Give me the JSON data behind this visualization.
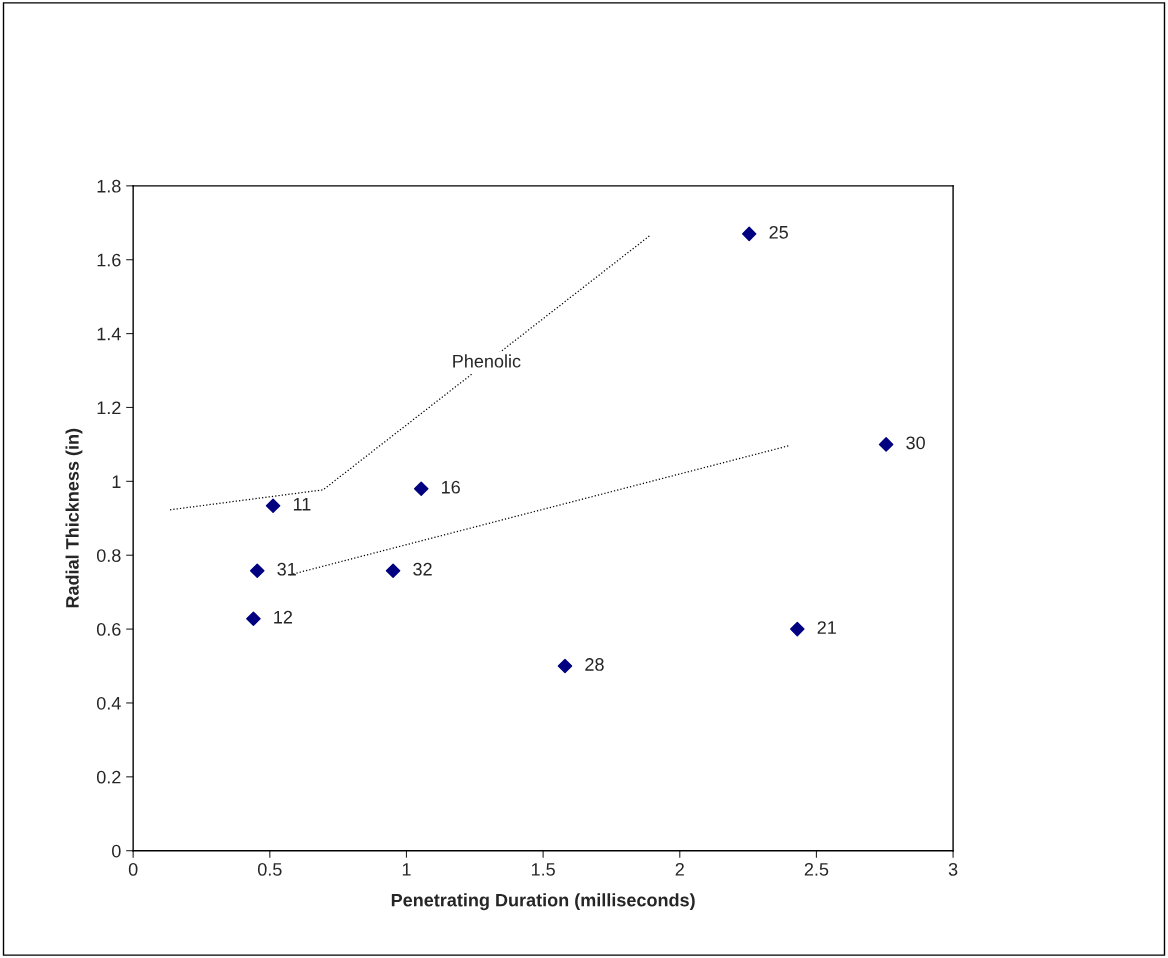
{
  "chart_data": {
    "type": "scatter",
    "xlabel": "Penetrating Duration (milliseconds)",
    "ylabel": "Radial Thickness (in)",
    "xlim": [
      0,
      3
    ],
    "xticks": [
      0,
      0.5,
      1,
      1.5,
      2,
      2.5,
      3
    ],
    "ylim": [
      0,
      1.8
    ],
    "yticks": [
      0,
      0.2,
      0.4,
      0.6,
      0.8,
      1,
      1.2,
      1.4,
      1.6,
      1.8
    ],
    "grid": false,
    "legend": false,
    "marker": "diamond",
    "series": [
      {
        "color": "#000080",
        "x": [
          0.512,
          0.44,
          0.454,
          0.951,
          1.054,
          1.58,
          2.254,
          2.43,
          2.755
        ],
        "values": [
          0.934,
          0.628,
          0.758,
          0.758,
          0.98,
          0.5,
          1.67,
          0.6,
          1.1
        ]
      },
      {
        "type": "line",
        "name": "Phenolic",
        "color": "#000000",
        "line_style": "dotted",
        "marker": "none",
        "x": [
          0.135,
          0.695,
          1.89
        ],
        "values": [
          0.923,
          0.977,
          1.665
        ]
      },
      {
        "type": "line",
        "color": "#000000",
        "line_style": "dotted",
        "marker": "none",
        "x": [
          0.574,
          2.397
        ],
        "values": [
          0.747,
          1.096
        ]
      }
    ],
    "annotations": [
      {
        "text": "11",
        "x": 0.512,
        "y": 0.934
      },
      {
        "text": "12",
        "x": 0.44,
        "y": 0.628
      },
      {
        "text": "31",
        "x": 0.454,
        "y": 0.758
      },
      {
        "text": "32",
        "x": 0.951,
        "y": 0.758
      },
      {
        "text": "16",
        "x": 1.054,
        "y": 0.98
      },
      {
        "text": "28",
        "x": 1.58,
        "y": 0.5
      },
      {
        "text": "25",
        "x": 2.254,
        "y": 1.67
      },
      {
        "text": "21",
        "x": 2.43,
        "y": 0.6
      },
      {
        "text": "30",
        "x": 2.755,
        "y": 1.1
      }
    ]
  }
}
